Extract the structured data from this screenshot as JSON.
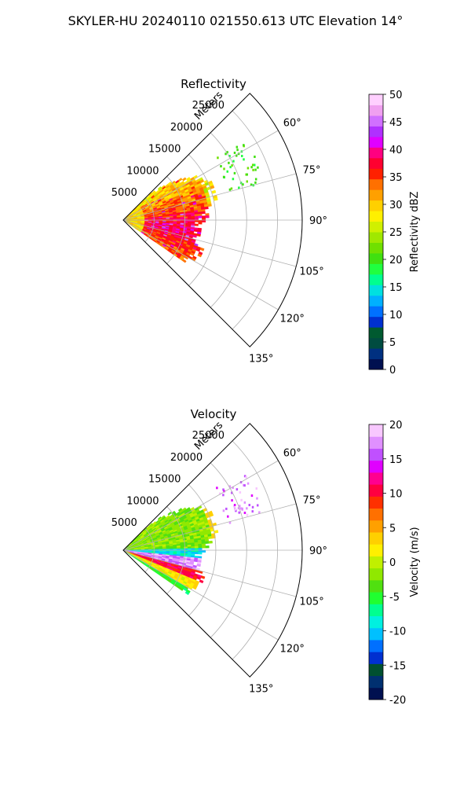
{
  "figure": {
    "title": "SKYLER-HU  20240110  021550.613 UTC Elevation 14°"
  },
  "chart_data": [
    {
      "type": "heatmap",
      "projection": "polar-sector",
      "title": "Reflectivity",
      "radial_label": "Meters",
      "radial_ticks": [
        "5000",
        "10000",
        "15000",
        "20000",
        "25000"
      ],
      "radial_tick_values": [
        5000,
        10000,
        15000,
        20000,
        25000
      ],
      "rmax": 29000,
      "azimuth_ticks": [
        "60°",
        "75°",
        "90°",
        "105°",
        "120°",
        "135°"
      ],
      "azimuth_tick_values": [
        60,
        75,
        90,
        105,
        120,
        135
      ],
      "theta_range": [
        45,
        135
      ],
      "grid": true,
      "colorbar": {
        "label": "Reflectivity dBZ",
        "ticks": [
          "0",
          "5",
          "10",
          "15",
          "20",
          "25",
          "30",
          "35",
          "40",
          "45",
          "50"
        ],
        "tick_values": [
          0,
          5,
          10,
          15,
          20,
          25,
          30,
          35,
          40,
          45,
          50
        ],
        "range": [
          0,
          50
        ]
      }
    },
    {
      "type": "heatmap",
      "projection": "polar-sector",
      "title": "Velocity",
      "radial_label": "Meters",
      "radial_ticks": [
        "5000",
        "10000",
        "15000",
        "20000",
        "25000"
      ],
      "radial_tick_values": [
        5000,
        10000,
        15000,
        20000,
        25000
      ],
      "rmax": 29000,
      "azimuth_ticks": [
        "60°",
        "75°",
        "90°",
        "105°",
        "120°",
        "135°"
      ],
      "azimuth_tick_values": [
        60,
        75,
        90,
        105,
        120,
        135
      ],
      "theta_range": [
        45,
        135
      ],
      "grid": true,
      "colorbar": {
        "label": "Velocity (m/s)",
        "ticks": [
          "-20",
          "-15",
          "-10",
          "-5",
          "0",
          "5",
          "10",
          "15",
          "20"
        ],
        "tick_values": [
          -20,
          -15,
          -10,
          -5,
          0,
          5,
          10,
          15,
          20
        ],
        "range": [
          -20,
          20
        ]
      }
    }
  ],
  "colormaps": {
    "reflectivity": [
      "#001050",
      "#003080",
      "#004c40",
      "#005a30",
      "#0030d0",
      "#0070ff",
      "#00b0ff",
      "#00e0e0",
      "#00ff90",
      "#20ff40",
      "#40e010",
      "#70e000",
      "#a0e800",
      "#d0f000",
      "#fff000",
      "#ffd000",
      "#ffa000",
      "#ff7000",
      "#ff2000",
      "#ff0030",
      "#ff0080",
      "#e000ff",
      "#b030ff",
      "#d070ff",
      "#f0a0f0",
      "#ffd0ff"
    ],
    "velocity": [
      "#001050",
      "#003070",
      "#005030",
      "#0030d0",
      "#0070ff",
      "#00c0ff",
      "#00f0e0",
      "#00ff90",
      "#20ff30",
      "#50e010",
      "#90e800",
      "#c0f000",
      "#fff000",
      "#ffd000",
      "#ffa000",
      "#ff7000",
      "#ff3000",
      "#ff0040",
      "#ff0090",
      "#e000ff",
      "#c050ff",
      "#e090ff",
      "#f8c8ff"
    ]
  }
}
